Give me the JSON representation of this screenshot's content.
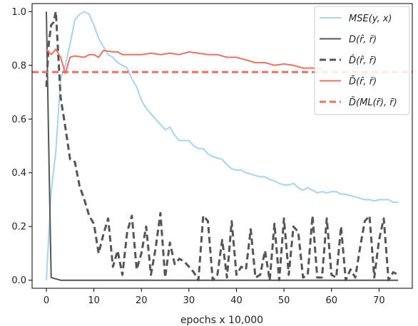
{
  "chart_data": {
    "type": "line",
    "xlabel": "epochs x 10,000",
    "ylabel": "",
    "xlim": [
      -3,
      77
    ],
    "ylim": [
      -0.03,
      1.03
    ],
    "xticks": [
      0,
      10,
      20,
      30,
      40,
      50,
      60,
      70
    ],
    "yticks": [
      0.0,
      0.2,
      0.4,
      0.6,
      0.8,
      1.0
    ],
    "xtick_labels": [
      "0",
      "10",
      "20",
      "30",
      "40",
      "50",
      "60",
      "70"
    ],
    "ytick_labels": [
      "0.0",
      "0.2",
      "0.4",
      "0.6",
      "0.8",
      "1.0"
    ],
    "grid": false,
    "legend_position": "top-right",
    "series": [
      {
        "name": "MSE(y, x)",
        "color": "#a6d4ee",
        "style": "solid",
        "x": [
          0,
          1,
          2,
          3,
          4,
          5,
          6,
          7,
          8,
          9,
          10,
          11,
          12,
          13,
          14,
          15,
          16,
          17,
          18,
          19,
          20,
          21,
          22,
          23,
          24,
          25,
          26,
          27,
          28,
          29,
          30,
          31,
          32,
          33,
          34,
          35,
          36,
          37,
          38,
          39,
          40,
          41,
          42,
          43,
          44,
          45,
          46,
          47,
          48,
          49,
          50,
          51,
          52,
          53,
          54,
          55,
          56,
          57,
          58,
          59,
          60,
          61,
          62,
          63,
          64,
          65,
          66,
          67,
          68,
          69,
          70,
          71,
          72,
          73,
          74
        ],
        "y": [
          0.0,
          0.33,
          0.48,
          0.75,
          0.8,
          0.88,
          0.97,
          0.99,
          1.0,
          0.99,
          0.95,
          0.9,
          0.87,
          0.84,
          0.83,
          0.81,
          0.8,
          0.79,
          0.75,
          0.72,
          0.67,
          0.64,
          0.62,
          0.6,
          0.58,
          0.56,
          0.57,
          0.54,
          0.52,
          0.52,
          0.52,
          0.5,
          0.49,
          0.49,
          0.47,
          0.46,
          0.455,
          0.45,
          0.43,
          0.415,
          0.41,
          0.41,
          0.4,
          0.395,
          0.39,
          0.385,
          0.385,
          0.375,
          0.37,
          0.36,
          0.355,
          0.355,
          0.36,
          0.345,
          0.335,
          0.345,
          0.335,
          0.325,
          0.33,
          0.325,
          0.33,
          0.33,
          0.32,
          0.32,
          0.315,
          0.31,
          0.305,
          0.3,
          0.3,
          0.295,
          0.3,
          0.3,
          0.3,
          0.29,
          0.29
        ]
      },
      {
        "name": "D(r̂, r̄)",
        "color": "#555555",
        "style": "solid",
        "x": [
          0,
          0.5,
          1,
          2,
          3,
          4,
          5,
          10,
          20,
          30,
          40,
          50,
          60,
          70,
          74
        ],
        "y": [
          1.0,
          0.5,
          0.01,
          0.005,
          0.0,
          0.0,
          0.0,
          0.0,
          0.0,
          0.0,
          0.0,
          0.0,
          0.0,
          0.0,
          0.0
        ]
      },
      {
        "name": "D̂(r̂, r̄)",
        "color": "#555555",
        "style": "dashed",
        "x": [
          0,
          0.5,
          1,
          1.5,
          2,
          3,
          4,
          5,
          6,
          7,
          8,
          9,
          10,
          11,
          12,
          13,
          14,
          15,
          16,
          17,
          18,
          19,
          20,
          21,
          22,
          23,
          24,
          25,
          26,
          27,
          28,
          29,
          30,
          31,
          32,
          33,
          34,
          35,
          36,
          37,
          38,
          39,
          40,
          41,
          42,
          43,
          44,
          45,
          46,
          47,
          48,
          49,
          50,
          51,
          52,
          53,
          54,
          55,
          56,
          57,
          58,
          59,
          60,
          61,
          62,
          63,
          64,
          65,
          66,
          67,
          68,
          69,
          70,
          71,
          72,
          73,
          74
        ],
        "y": [
          0.72,
          0.88,
          0.95,
          0.96,
          1.0,
          0.68,
          0.57,
          0.45,
          0.44,
          0.35,
          0.3,
          0.24,
          0.21,
          0.1,
          0.17,
          0.23,
          0.05,
          0.11,
          0.02,
          0.18,
          0.24,
          0.04,
          0.1,
          0.2,
          0.02,
          0.12,
          0.25,
          0.01,
          0.14,
          0.06,
          0.08,
          0.07,
          0.05,
          0.03,
          0.0,
          0.24,
          0.22,
          0.0,
          0.02,
          0.15,
          0.01,
          0.22,
          0.02,
          0.05,
          0.04,
          0.19,
          0.01,
          0.02,
          0.11,
          0.0,
          0.21,
          0.0,
          0.23,
          0.02,
          0.2,
          0.18,
          0.01,
          0.02,
          0.24,
          0.01,
          0.01,
          0.23,
          0.02,
          0.01,
          0.2,
          0.0,
          0.04,
          0.01,
          0.12,
          0.22,
          0.24,
          0.01,
          0.15,
          0.23,
          0.0,
          0.03,
          0.02
        ]
      },
      {
        "name": "D̄(r̂, r̄)",
        "color": "#ee6f63",
        "style": "solid",
        "x": [
          0,
          1,
          2,
          3,
          4,
          5,
          6,
          8,
          9,
          10,
          11,
          12,
          14,
          15,
          16,
          18,
          20,
          22,
          24,
          26,
          28,
          30,
          32,
          34,
          36,
          38,
          40,
          42,
          44,
          46,
          48,
          50,
          52,
          54,
          56,
          58
        ],
        "y": [
          0.86,
          0.84,
          0.86,
          0.83,
          0.77,
          0.83,
          0.835,
          0.83,
          0.84,
          0.84,
          0.83,
          0.855,
          0.85,
          0.85,
          0.84,
          0.84,
          0.84,
          0.845,
          0.84,
          0.845,
          0.84,
          0.85,
          0.845,
          0.84,
          0.84,
          0.83,
          0.83,
          0.82,
          0.81,
          0.81,
          0.8,
          0.805,
          0.8,
          0.79,
          0.79,
          0.785
        ]
      },
      {
        "name": "D̄(ML(r̄), r̄)",
        "color": "#ee6f63",
        "style": "dashed",
        "x": [
          -3,
          77
        ],
        "y": [
          0.775,
          0.775
        ]
      }
    ]
  }
}
